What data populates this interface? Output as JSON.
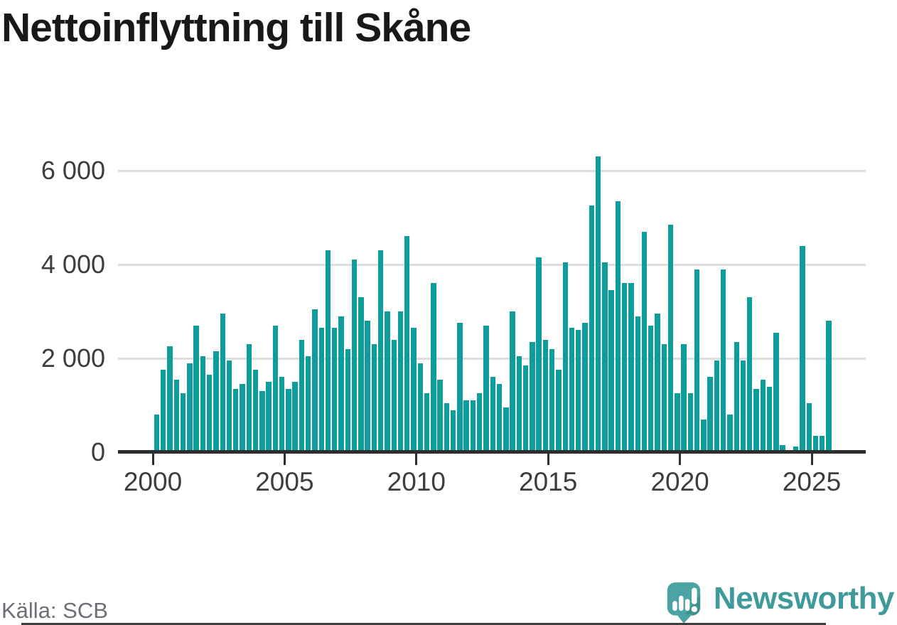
{
  "title": "Nettoinflyttning till Skåne",
  "source_label": "Källa: SCB",
  "brand": {
    "name": "Newsworthy",
    "icon": "newsworthy-speech-bubble-chart-icon",
    "text_color": "#3f9b9b",
    "icon_color": "#4ba4a3"
  },
  "colors": {
    "bar": "#0d9d9d",
    "gridline": "#dedede",
    "axis": "#2e2e2e",
    "tick_label": "#3d3d3d",
    "title": "#191919",
    "source_text": "#6e6e77"
  },
  "chart_data": {
    "type": "bar",
    "title": "Nettoinflyttning till Skåne",
    "frequency": "quarterly",
    "x_tick_labels": [
      "2000",
      "2005",
      "2010",
      "2015",
      "2020",
      "2025"
    ],
    "x_tick_years": [
      2000,
      2005,
      2010,
      2015,
      2020,
      2025
    ],
    "y_tick_labels": [
      "0",
      "2 000",
      "4 000",
      "6 000"
    ],
    "y_tick_values": [
      0,
      2000,
      4000,
      6000
    ],
    "ylim": [
      0,
      6600
    ],
    "grid": "horizontal",
    "legend": "none",
    "series": [
      {
        "year": 2000,
        "quarterly_values": [
          800,
          1750,
          2250,
          1550
        ]
      },
      {
        "year": 2001,
        "quarterly_values": [
          1250,
          1900,
          2700,
          2050
        ]
      },
      {
        "year": 2002,
        "quarterly_values": [
          1650,
          2150,
          2950,
          1950
        ]
      },
      {
        "year": 2003,
        "quarterly_values": [
          1350,
          1450,
          2300,
          1750
        ]
      },
      {
        "year": 2004,
        "quarterly_values": [
          1300,
          1500,
          2700,
          1600
        ]
      },
      {
        "year": 2005,
        "quarterly_values": [
          1350,
          1500,
          2400,
          2050
        ]
      },
      {
        "year": 2006,
        "quarterly_values": [
          3050,
          2650,
          4300,
          2650
        ]
      },
      {
        "year": 2007,
        "quarterly_values": [
          2900,
          2200,
          4100,
          3300
        ]
      },
      {
        "year": 2008,
        "quarterly_values": [
          2800,
          2300,
          4300,
          3000
        ]
      },
      {
        "year": 2009,
        "quarterly_values": [
          2400,
          3000,
          4600,
          2650
        ]
      },
      {
        "year": 2010,
        "quarterly_values": [
          1900,
          1250,
          3600,
          1550
        ]
      },
      {
        "year": 2011,
        "quarterly_values": [
          1050,
          900,
          2750,
          1100
        ]
      },
      {
        "year": 2012,
        "quarterly_values": [
          1100,
          1250,
          2700,
          1600
        ]
      },
      {
        "year": 2013,
        "quarterly_values": [
          1450,
          950,
          3000,
          2050
        ]
      },
      {
        "year": 2014,
        "quarterly_values": [
          1850,
          2350,
          4150,
          2400
        ]
      },
      {
        "year": 2015,
        "quarterly_values": [
          2200,
          1750,
          4050,
          2650
        ]
      },
      {
        "year": 2016,
        "quarterly_values": [
          2600,
          2750,
          5250,
          6300
        ]
      },
      {
        "year": 2017,
        "quarterly_values": [
          4050,
          3450,
          5350,
          3600
        ]
      },
      {
        "year": 2018,
        "quarterly_values": [
          3600,
          2900,
          4700,
          2700
        ]
      },
      {
        "year": 2019,
        "quarterly_values": [
          2950,
          2300,
          4850,
          1250
        ]
      },
      {
        "year": 2020,
        "quarterly_values": [
          2300,
          1250,
          3900,
          700
        ]
      },
      {
        "year": 2021,
        "quarterly_values": [
          1600,
          1950,
          3900,
          800
        ]
      },
      {
        "year": 2022,
        "quarterly_values": [
          2350,
          1950,
          3300,
          1350
        ]
      },
      {
        "year": 2023,
        "quarterly_values": [
          1550,
          1400,
          2550,
          150
        ]
      },
      {
        "year": 2024,
        "quarterly_values": [
          50,
          125,
          4400,
          1050
        ]
      },
      {
        "year": 2025,
        "quarterly_values": [
          350,
          350,
          2800
        ]
      }
    ]
  }
}
